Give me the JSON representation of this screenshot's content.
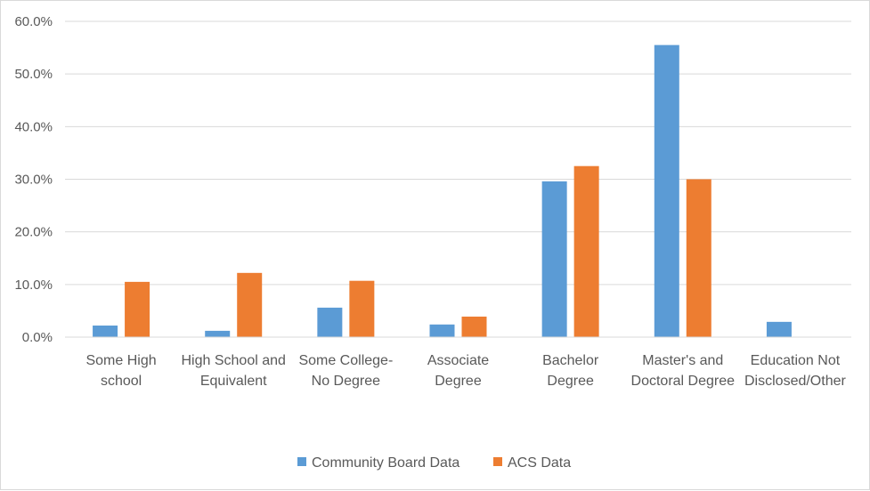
{
  "chart_data": {
    "type": "bar",
    "title": "",
    "xlabel": "",
    "ylabel": "",
    "categories": [
      [
        "Some High",
        "school"
      ],
      [
        "High School and",
        "Equivalent"
      ],
      [
        "Some College-",
        "No Degree"
      ],
      [
        "Associate",
        "Degree"
      ],
      [
        "Bachelor",
        "Degree"
      ],
      [
        "Master's and",
        "Doctoral Degree"
      ],
      [
        "Education Not",
        "Disclosed/Other"
      ]
    ],
    "series": [
      {
        "name": "Community Board Data",
        "color": "#5b9bd5",
        "values": [
          2.2,
          1.2,
          5.6,
          2.4,
          29.6,
          55.5,
          2.9
        ]
      },
      {
        "name": "ACS Data",
        "color": "#ed7d31",
        "values": [
          10.5,
          12.2,
          10.7,
          3.9,
          32.5,
          30.0,
          null
        ]
      }
    ],
    "ylim": [
      0,
      60
    ],
    "yticks": [
      "0.0%",
      "10.0%",
      "20.0%",
      "30.0%",
      "40.0%",
      "50.0%",
      "60.0%"
    ],
    "grid": true,
    "gridColor": "#d9d9d9",
    "legend": "bottom"
  }
}
